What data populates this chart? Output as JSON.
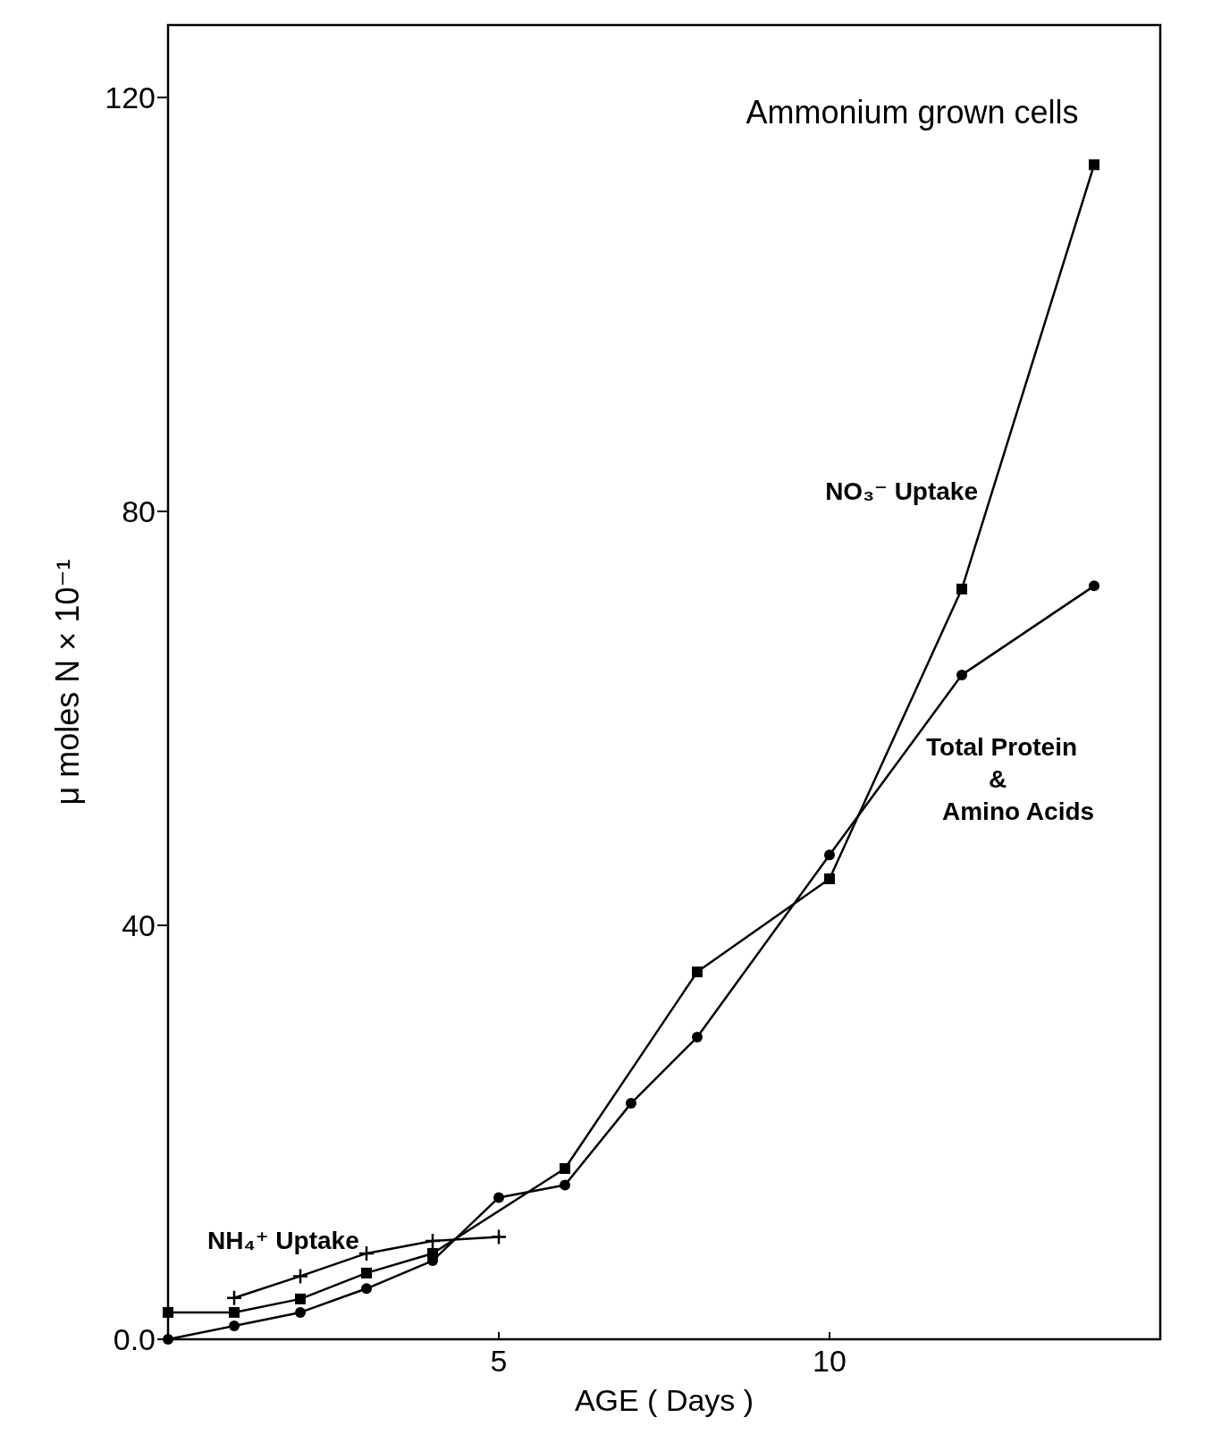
{
  "chart_data": {
    "type": "line",
    "title": "Ammonium grown cells",
    "xlabel": "AGE ( Days )",
    "ylabel": "μ moles N × 10⁻¹",
    "xlim": [
      0,
      15
    ],
    "ylim": [
      0,
      127
    ],
    "xticks": [
      5,
      10
    ],
    "yticks": [
      {
        "value": 0,
        "label": "0.0"
      },
      40,
      80,
      120
    ],
    "grid": false,
    "line_style": "solid",
    "series": [
      {
        "name": "NO₃⁻ Uptake",
        "color": "#000000",
        "marker": "square",
        "x": [
          0,
          1,
          2,
          3,
          4,
          6,
          8,
          10,
          12,
          14
        ],
        "values": [
          2.6,
          2.6,
          3.9,
          6.4,
          8.3,
          16.5,
          35.5,
          44.5,
          72.5,
          113.5
        ]
      },
      {
        "name": "Total Protein & Amino Acids",
        "color": "#000000",
        "marker": "circle",
        "x": [
          0,
          1,
          2,
          3,
          4,
          5,
          6,
          7,
          8,
          10,
          12,
          14
        ],
        "values": [
          0,
          1.3,
          2.6,
          4.9,
          7.6,
          13.7,
          14.9,
          22.8,
          29.2,
          46.8,
          64.2,
          72.8
        ]
      },
      {
        "name": "NH₄⁺ Uptake",
        "color": "#000000",
        "marker": "cross",
        "x": [
          1,
          2,
          3,
          4,
          5
        ],
        "values": [
          4.0,
          6.1,
          8.3,
          9.5,
          9.9
        ]
      }
    ]
  }
}
